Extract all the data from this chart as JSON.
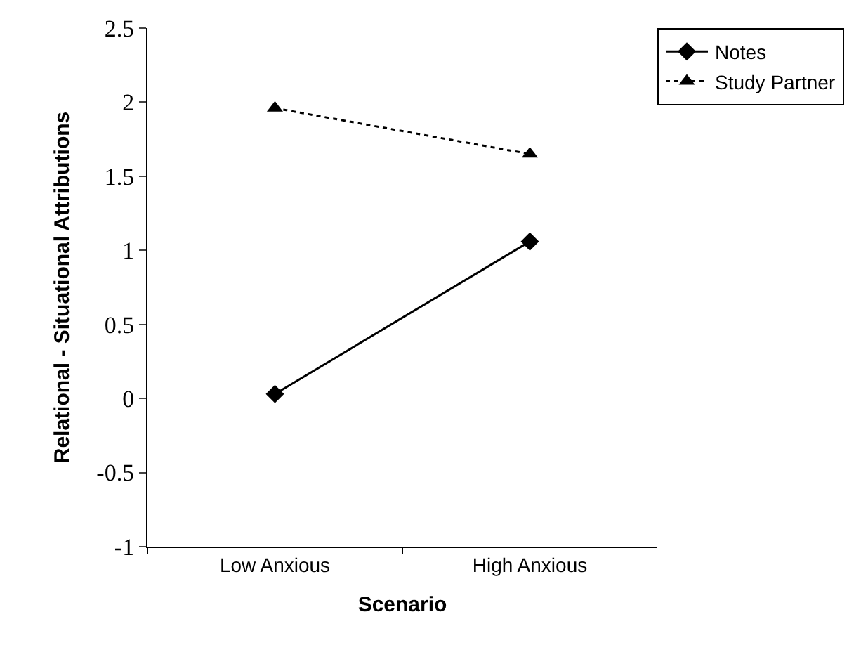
{
  "chart_data": {
    "type": "line",
    "xlabel": "Scenario",
    "ylabel": "Relational - Situational Attributions",
    "categories": [
      "Low Anxious",
      "High Anxious"
    ],
    "series": [
      {
        "name": "Notes",
        "color": "#000000",
        "values": [
          0.03,
          1.06
        ],
        "marker": "diamond",
        "line_style": "solid"
      },
      {
        "name": "Study Partner",
        "color": "#000000",
        "values": [
          1.96,
          1.65
        ],
        "marker": "triangle",
        "line_style": "dotted"
      }
    ],
    "ylim": [
      -1,
      2.5
    ],
    "yticks": [
      -1,
      -0.5,
      0,
      0.5,
      1,
      1.5,
      2,
      2.5
    ],
    "legend": "top right"
  }
}
